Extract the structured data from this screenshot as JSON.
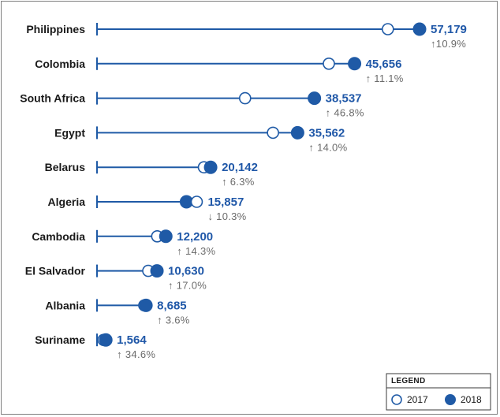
{
  "chart_data": {
    "type": "dumbbell",
    "legend": {
      "title": "LEGEND",
      "position": "bottom-right",
      "items": [
        {
          "label": "2017",
          "style": "hollow"
        },
        {
          "label": "2018",
          "style": "filled"
        }
      ]
    },
    "colors": {
      "series": "#1f5aa6",
      "pct_text": "#6b6b6b"
    },
    "rows": [
      {
        "country": "Philippines",
        "value_2018": 57179,
        "value_2017": 51559,
        "value_label": "57,179",
        "change_label": "↑10.9%"
      },
      {
        "country": "Colombia",
        "value_2018": 45656,
        "value_2017": 41100,
        "value_label": "45,656",
        "change_label": "↑ 11.1%"
      },
      {
        "country": "South Africa",
        "value_2018": 38537,
        "value_2017": 26250,
        "value_label": "38,537",
        "change_label": "↑ 46.8%"
      },
      {
        "country": "Egypt",
        "value_2018": 35562,
        "value_2017": 31195,
        "value_label": "35,562",
        "change_label": "↑ 14.0%"
      },
      {
        "country": "Belarus",
        "value_2018": 20142,
        "value_2017": 18949,
        "value_label": "20,142",
        "change_label": "↑ 6.3%"
      },
      {
        "country": "Algeria",
        "value_2018": 15857,
        "value_2017": 17680,
        "value_label": "15,857",
        "change_label": "↓ 10.3%"
      },
      {
        "country": "Cambodia",
        "value_2018": 12200,
        "value_2017": 10673,
        "value_label": "12,200",
        "change_label": "↑ 14.3%"
      },
      {
        "country": "El Salvador",
        "value_2018": 10630,
        "value_2017": 9085,
        "value_label": "10,630",
        "change_label": "↑ 17.0%"
      },
      {
        "country": "Albania",
        "value_2018": 8685,
        "value_2017": 8383,
        "value_label": "8,685",
        "change_label": "↑ 3.6%"
      },
      {
        "country": "Suriname",
        "value_2018": 1564,
        "value_2017": 1162,
        "value_label": "1,564",
        "change_label": "↑ 34.6%"
      }
    ]
  }
}
